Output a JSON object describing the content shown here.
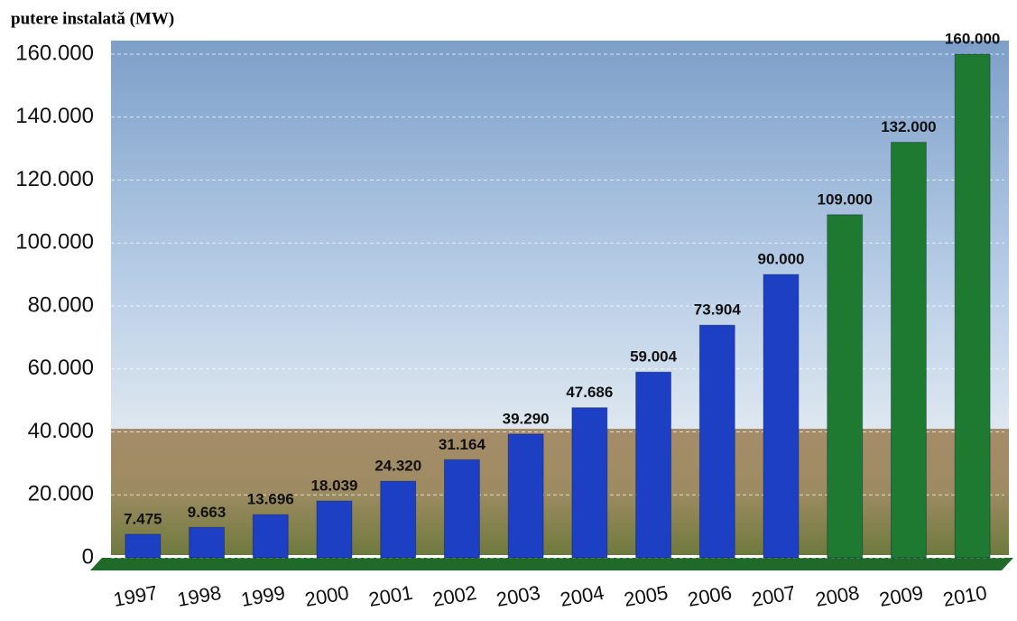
{
  "chart_data": {
    "type": "bar",
    "y_axis_label": "putere instalată (MW)",
    "categories": [
      "1997",
      "1998",
      "1999",
      "2000",
      "2001",
      "2002",
      "2003",
      "2004",
      "2005",
      "2006",
      "2007",
      "2008",
      "2009",
      "2010"
    ],
    "values": [
      7475,
      9663,
      13696,
      18039,
      24320,
      31164,
      39290,
      47686,
      59004,
      73904,
      90000,
      109000,
      132000,
      160000
    ],
    "value_labels": [
      "7.475",
      "9.663",
      "13.696",
      "18.039",
      "24.320",
      "31.164",
      "39.290",
      "47.686",
      "59.004",
      "73.904",
      "90.000",
      "109.000",
      "132.000",
      "160.000"
    ],
    "colors": [
      "#1d3fc4",
      "#1d3fc4",
      "#1d3fc4",
      "#1d3fc4",
      "#1d3fc4",
      "#1d3fc4",
      "#1d3fc4",
      "#1d3fc4",
      "#1d3fc4",
      "#1d3fc4",
      "#1d3fc4",
      "#1e7a30",
      "#1e7a30",
      "#1e7a30"
    ],
    "ylim": [
      0,
      160000
    ],
    "yticks": [
      {
        "value": 0,
        "label": "0"
      },
      {
        "value": 20000,
        "label": "20.000"
      },
      {
        "value": 40000,
        "label": "40.000"
      },
      {
        "value": 60000,
        "label": "60.000"
      },
      {
        "value": 80000,
        "label": "80.000"
      },
      {
        "value": 100000,
        "label": "100.000"
      },
      {
        "value": 120000,
        "label": "120.000"
      },
      {
        "value": 140000,
        "label": "140.000"
      },
      {
        "value": 160000,
        "label": "160.000"
      }
    ],
    "grid": true
  }
}
